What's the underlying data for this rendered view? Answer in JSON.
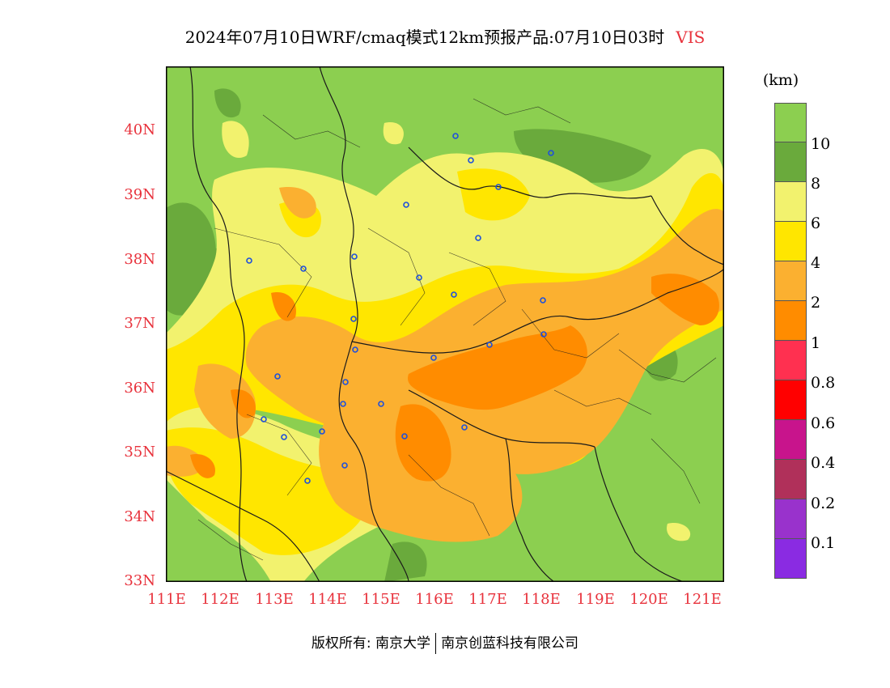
{
  "title": {
    "main": "2024年07月10日WRF/cmaq模式12km预报产品:07月10日03时",
    "variable": "VIS"
  },
  "map": {
    "lat_labels": [
      "40N",
      "39N",
      "38N",
      "37N",
      "36N",
      "35N",
      "34N",
      "33N"
    ],
    "lon_labels": [
      "111E",
      "112E",
      "113E",
      "114E",
      "115E",
      "116E",
      "117E",
      "118E",
      "119E",
      "120E",
      "121E"
    ],
    "station_marker_color": "#1e50dc"
  },
  "legend": {
    "unit": "(km)",
    "levels": [
      {
        "label": "10",
        "color": "#8ccf50"
      },
      {
        "label": "8",
        "color": "#6aaa3c"
      },
      {
        "label": "6",
        "color": "#f2f26e"
      },
      {
        "label": "4",
        "color": "#ffe600"
      },
      {
        "label": "2",
        "color": "#fbb030"
      },
      {
        "label": "1",
        "color": "#ff8c00"
      },
      {
        "label": "0.8",
        "color": "#ff3050"
      },
      {
        "label": "0.6",
        "color": "#ff0000"
      },
      {
        "label": "0.4",
        "color": "#c8148c"
      },
      {
        "label": "0.2",
        "color": "#b0305a"
      },
      {
        "label": "0.1",
        "color": "#9932cc"
      },
      {
        "label": "",
        "color": "#8a2be2"
      }
    ]
  },
  "footer": {
    "copyright": "版权所有: 南京大学",
    "company": "南京创蓝科技有限公司"
  }
}
